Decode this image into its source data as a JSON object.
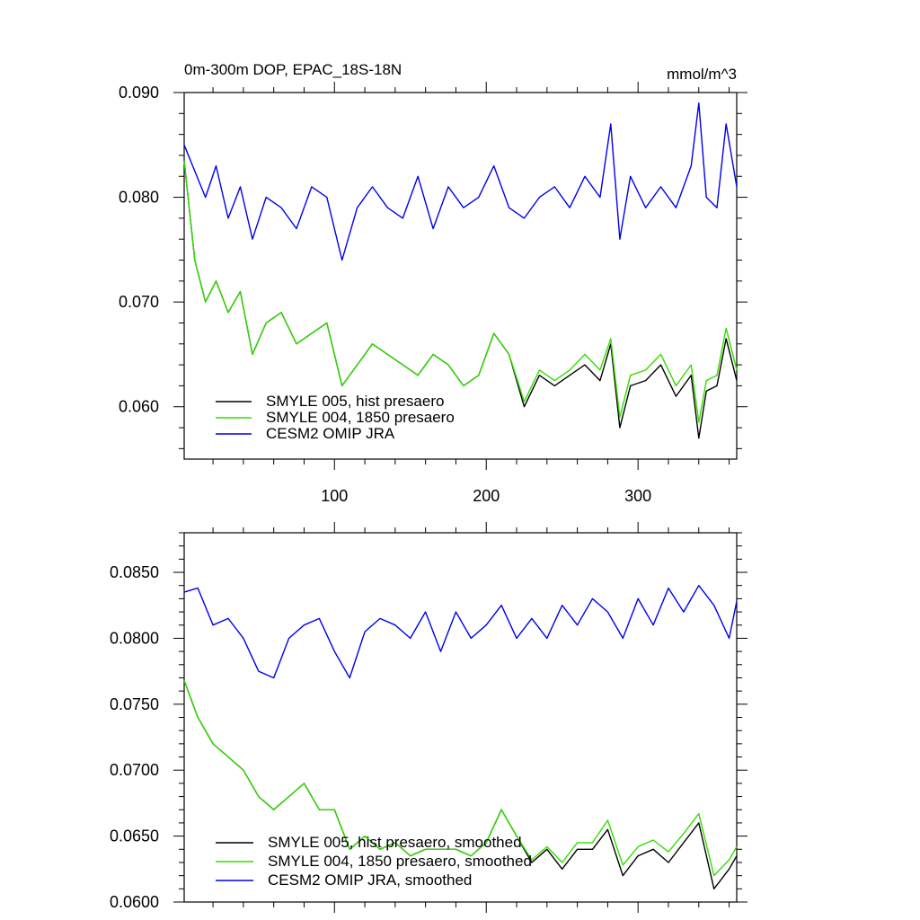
{
  "chart_data": [
    {
      "type": "line",
      "title": "0m-300m DOP, EPAC_18S-18N",
      "units": "mmol/m^3",
      "xlim": [
        1,
        365
      ],
      "ylim": [
        0.055,
        0.09
      ],
      "x_ticks": [
        100,
        200,
        300
      ],
      "x_tick_labels": [
        "100",
        "200",
        "300"
      ],
      "y_ticks": [
        0.06,
        0.07,
        0.08,
        0.09
      ],
      "y_tick_labels": [
        "0.060",
        "0.070",
        "0.080",
        "0.090"
      ],
      "legend": {
        "placement": "bottom-left"
      },
      "series": [
        {
          "name": "SMYLE 005, hist presaero",
          "color": "#000000",
          "x": [
            1,
            8,
            15,
            22,
            30,
            38,
            46,
            55,
            65,
            75,
            85,
            95,
            105,
            115,
            125,
            135,
            145,
            155,
            165,
            175,
            185,
            195,
            205,
            215,
            225,
            235,
            245,
            255,
            265,
            275,
            282,
            288,
            295,
            305,
            315,
            325,
            335,
            340,
            345,
            352,
            358,
            365
          ],
          "y": [
            0.0835,
            0.074,
            0.07,
            0.072,
            0.069,
            0.071,
            0.065,
            0.068,
            0.069,
            0.066,
            0.067,
            0.068,
            0.062,
            0.064,
            0.066,
            0.065,
            0.064,
            0.063,
            0.065,
            0.064,
            0.062,
            0.063,
            0.067,
            0.065,
            0.06,
            0.063,
            0.062,
            0.063,
            0.064,
            0.0625,
            0.066,
            0.058,
            0.062,
            0.0625,
            0.064,
            0.061,
            0.063,
            0.057,
            0.0615,
            0.062,
            0.0665,
            0.0625
          ]
        },
        {
          "name": "SMYLE 004, 1850 presaero",
          "color": "#33dd00",
          "x": [
            1,
            8,
            15,
            22,
            30,
            38,
            46,
            55,
            65,
            75,
            85,
            95,
            105,
            115,
            125,
            135,
            145,
            155,
            165,
            175,
            185,
            195,
            205,
            215,
            225,
            235,
            245,
            255,
            265,
            275,
            282,
            288,
            295,
            305,
            315,
            325,
            335,
            340,
            345,
            352,
            358,
            365
          ],
          "y": [
            0.0835,
            0.074,
            0.07,
            0.072,
            0.069,
            0.071,
            0.065,
            0.068,
            0.069,
            0.066,
            0.067,
            0.068,
            0.062,
            0.064,
            0.066,
            0.065,
            0.064,
            0.063,
            0.065,
            0.064,
            0.062,
            0.063,
            0.067,
            0.065,
            0.0605,
            0.0635,
            0.0625,
            0.0635,
            0.065,
            0.0635,
            0.0665,
            0.059,
            0.063,
            0.0635,
            0.065,
            0.062,
            0.064,
            0.0585,
            0.0625,
            0.063,
            0.0675,
            0.0635
          ]
        },
        {
          "name": "CESM2 OMIP JRA",
          "color": "#0000ee",
          "x": [
            1,
            8,
            15,
            22,
            30,
            38,
            46,
            55,
            65,
            75,
            85,
            95,
            105,
            115,
            125,
            135,
            145,
            155,
            165,
            175,
            185,
            195,
            205,
            215,
            225,
            235,
            245,
            255,
            265,
            275,
            282,
            288,
            295,
            305,
            315,
            325,
            335,
            340,
            345,
            352,
            358,
            365
          ],
          "y": [
            0.085,
            0.0825,
            0.08,
            0.083,
            0.078,
            0.081,
            0.076,
            0.08,
            0.079,
            0.077,
            0.081,
            0.08,
            0.074,
            0.079,
            0.081,
            0.079,
            0.078,
            0.082,
            0.077,
            0.081,
            0.079,
            0.08,
            0.083,
            0.079,
            0.078,
            0.08,
            0.081,
            0.079,
            0.082,
            0.08,
            0.087,
            0.076,
            0.082,
            0.079,
            0.081,
            0.079,
            0.083,
            0.089,
            0.08,
            0.079,
            0.087,
            0.081
          ]
        }
      ]
    },
    {
      "type": "line",
      "title": "",
      "xlim": [
        1,
        365
      ],
      "ylim": [
        0.06,
        0.088
      ],
      "x_ticks": [
        100,
        200,
        300
      ],
      "y_ticks": [
        0.06,
        0.065,
        0.07,
        0.075,
        0.08,
        0.085
      ],
      "y_tick_labels": [
        "0.0600",
        "0.0650",
        "0.0700",
        "0.0750",
        "0.0800",
        "0.0850"
      ],
      "legend": {
        "placement": "bottom-left"
      },
      "series": [
        {
          "name": "SMYLE 005, hist presaero, smoothed",
          "color": "#000000",
          "x": [
            1,
            10,
            20,
            30,
            40,
            50,
            60,
            70,
            80,
            90,
            100,
            110,
            120,
            130,
            140,
            150,
            160,
            170,
            180,
            190,
            200,
            210,
            220,
            230,
            240,
            250,
            260,
            270,
            280,
            290,
            300,
            310,
            320,
            330,
            340,
            350,
            360,
            365
          ],
          "y": [
            0.0768,
            0.074,
            0.072,
            0.071,
            0.07,
            0.068,
            0.067,
            0.068,
            0.069,
            0.067,
            0.067,
            0.064,
            0.065,
            0.064,
            0.0645,
            0.0635,
            0.064,
            0.064,
            0.064,
            0.0635,
            0.0645,
            0.067,
            0.065,
            0.063,
            0.064,
            0.0625,
            0.064,
            0.064,
            0.0655,
            0.062,
            0.0635,
            0.064,
            0.063,
            0.0645,
            0.066,
            0.061,
            0.0625,
            0.0635
          ]
        },
        {
          "name": "SMYLE 004, 1850 presaero, smoothed",
          "color": "#33dd00",
          "x": [
            1,
            10,
            20,
            30,
            40,
            50,
            60,
            70,
            80,
            90,
            100,
            110,
            120,
            130,
            140,
            150,
            160,
            170,
            180,
            190,
            200,
            210,
            220,
            230,
            240,
            250,
            260,
            270,
            280,
            290,
            300,
            310,
            320,
            330,
            340,
            350,
            360,
            365
          ],
          "y": [
            0.0768,
            0.074,
            0.072,
            0.071,
            0.07,
            0.068,
            0.067,
            0.068,
            0.069,
            0.067,
            0.067,
            0.064,
            0.065,
            0.064,
            0.0645,
            0.0635,
            0.064,
            0.064,
            0.064,
            0.0635,
            0.0645,
            0.067,
            0.065,
            0.0632,
            0.0642,
            0.063,
            0.0645,
            0.0645,
            0.0662,
            0.0628,
            0.0642,
            0.0647,
            0.0638,
            0.0652,
            0.0667,
            0.062,
            0.0632,
            0.0642
          ]
        },
        {
          "name": "CESM2 OMIP JRA, smoothed",
          "color": "#0000ee",
          "x": [
            1,
            10,
            20,
            30,
            40,
            50,
            60,
            70,
            80,
            90,
            100,
            110,
            120,
            130,
            140,
            150,
            160,
            170,
            180,
            190,
            200,
            210,
            220,
            230,
            240,
            250,
            260,
            270,
            280,
            290,
            300,
            310,
            320,
            330,
            340,
            350,
            360,
            365
          ],
          "y": [
            0.0835,
            0.0838,
            0.081,
            0.0815,
            0.08,
            0.0775,
            0.077,
            0.08,
            0.081,
            0.0815,
            0.079,
            0.077,
            0.0805,
            0.0815,
            0.081,
            0.08,
            0.082,
            0.079,
            0.082,
            0.08,
            0.081,
            0.0825,
            0.08,
            0.0815,
            0.08,
            0.0825,
            0.081,
            0.083,
            0.082,
            0.08,
            0.083,
            0.081,
            0.0838,
            0.082,
            0.084,
            0.0825,
            0.08,
            0.0828
          ]
        }
      ]
    }
  ]
}
